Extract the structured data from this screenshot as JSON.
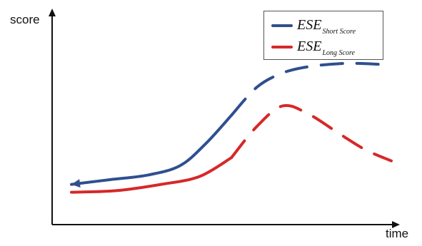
{
  "chart_data": {
    "type": "line",
    "x": [
      0,
      0.12,
      0.24,
      0.34,
      0.42,
      0.5,
      0.58,
      0.66,
      0.74,
      0.84,
      0.92,
      1
    ],
    "ylim": [
      0,
      1
    ],
    "xlim": [
      0,
      1
    ],
    "xlabel": "time",
    "ylabel": "score",
    "grid": false,
    "legend_placement": "top-right",
    "legend": [
      {
        "name": "ESE",
        "subscript": "Short Score",
        "color": "#2f4f8f"
      },
      {
        "name": "ESE",
        "subscript": "Long Score",
        "color": "#d62828"
      }
    ],
    "series": [
      {
        "name": "ESE Short Score",
        "color": "#2f4f8f",
        "x": [
          0,
          0.12,
          0.24,
          0.34,
          0.42,
          0.5,
          0.58,
          0.66,
          0.74,
          0.84,
          0.92,
          1
        ],
        "y": [
          0.12,
          0.15,
          0.18,
          0.24,
          0.38,
          0.56,
          0.74,
          0.83,
          0.87,
          0.89,
          0.89,
          0.88
        ],
        "solid_until_index": 5,
        "arrow_start": true
      },
      {
        "name": "ESE Long Score",
        "color": "#d62828",
        "x": [
          0,
          0.14,
          0.28,
          0.4,
          0.5,
          0.58,
          0.66,
          0.74,
          0.84,
          0.92,
          1
        ],
        "y": [
          0.07,
          0.08,
          0.12,
          0.17,
          0.29,
          0.49,
          0.62,
          0.57,
          0.44,
          0.34,
          0.27
        ],
        "solid_until_index": 4,
        "arrow_start": false
      }
    ]
  }
}
